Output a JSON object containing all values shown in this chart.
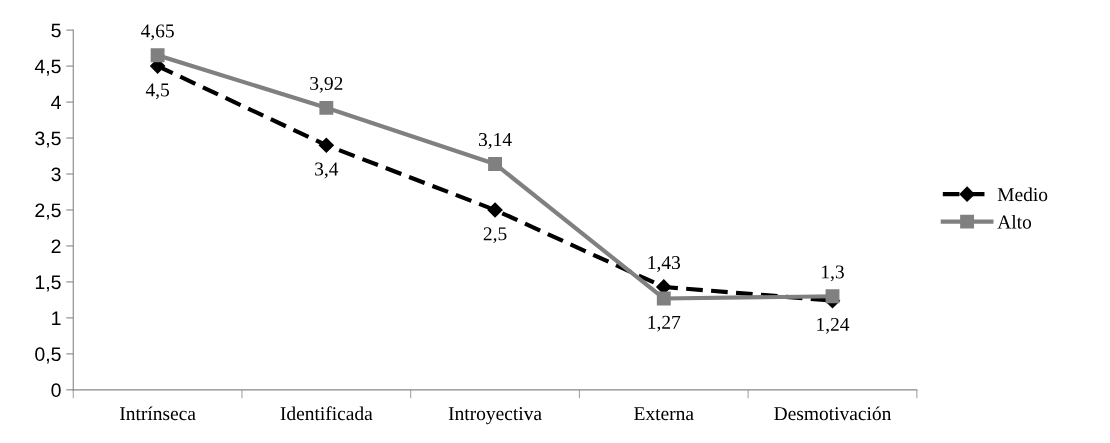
{
  "chart_data": {
    "type": "line",
    "categories": [
      "Intrínseca",
      "Identificada",
      "Introyectiva",
      "Externa",
      "Desmotivación"
    ],
    "series": [
      {
        "name": "Medio",
        "color": "#000000",
        "values": [
          4.5,
          3.4,
          2.5,
          1.43,
          1.24
        ],
        "value_labels": [
          "4,5",
          "3,4",
          "2,5",
          "1,43",
          "1,24"
        ],
        "marker": "diamond",
        "line_style": "dashed"
      },
      {
        "name": "Alto",
        "color": "#808080",
        "values": [
          4.65,
          3.92,
          3.14,
          1.27,
          1.3
        ],
        "value_labels": [
          "4,65",
          "3,92",
          "3,14",
          "1,27",
          "1,3"
        ],
        "marker": "square",
        "line_style": "solid"
      }
    ],
    "ylim": [
      0,
      5
    ],
    "yticks": [
      0,
      {
        "value": 0.5,
        "label": "0,5"
      },
      1,
      {
        "value": 1.5,
        "label": "1,5"
      },
      2,
      {
        "value": 2.5,
        "label": "2,5"
      },
      3,
      {
        "value": 3.5,
        "label": "3,5"
      },
      4,
      {
        "value": 4.5,
        "label": "4,5"
      },
      5
    ],
    "grid": false,
    "legend": "right"
  }
}
